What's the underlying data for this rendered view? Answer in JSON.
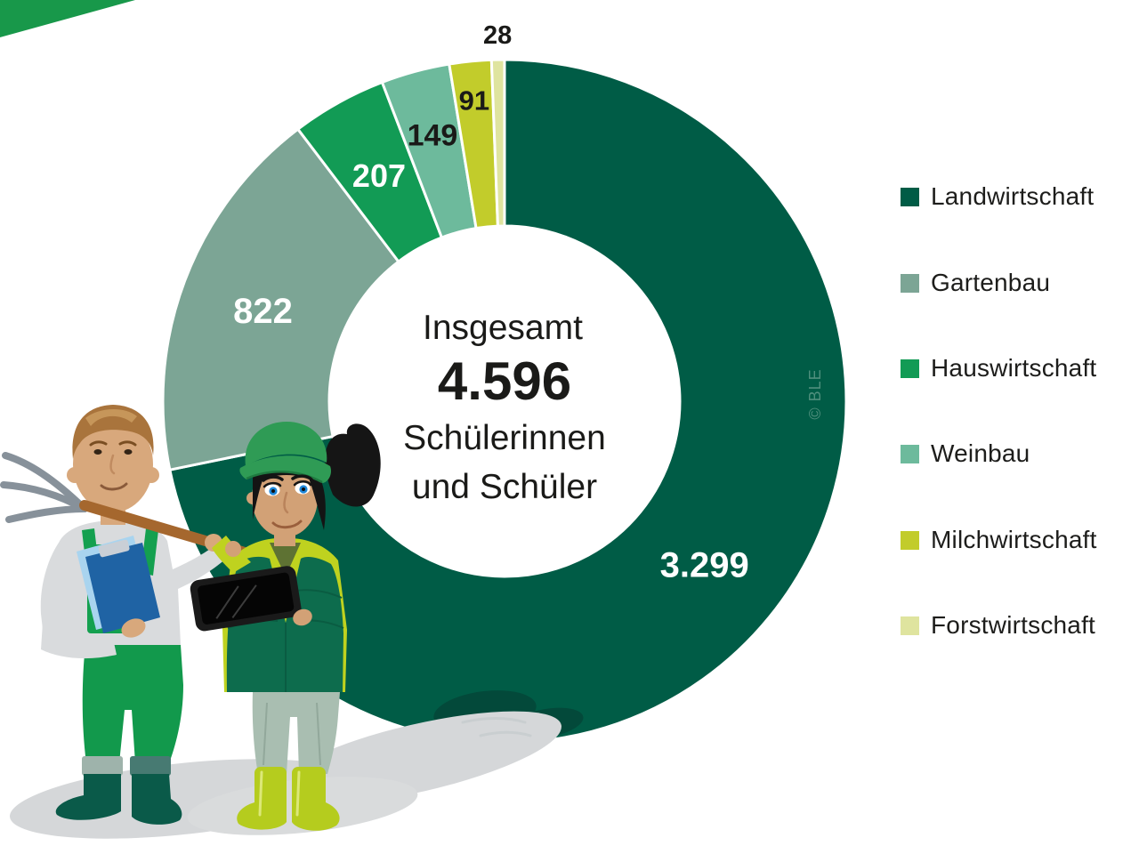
{
  "watermark": "© BLE",
  "chart_data": {
    "type": "pie",
    "variant": "donut",
    "title": "",
    "center": {
      "line1": "Insgesamt",
      "total": "4.596",
      "line3": "Schülerinnen",
      "line4": "und Schüler"
    },
    "total_value": 4596,
    "start_angle_deg": 0,
    "direction": "clockwise",
    "legend_position": "right",
    "segments": [
      {
        "label": "Landwirtschaft",
        "value": 3299,
        "display": "3.299",
        "color": "#005C46",
        "label_color": "#FFFFFF"
      },
      {
        "label": "Gartenbau",
        "value": 822,
        "display": "822",
        "color": "#7CA595",
        "label_color": "#FFFFFF"
      },
      {
        "label": "Hauswirtschaft",
        "value": 207,
        "display": "207",
        "color": "#129B55",
        "label_color": "#FFFFFF"
      },
      {
        "label": "Weinbau",
        "value": 149,
        "display": "149",
        "color": "#6DBA9C",
        "label_color": "#1A1A18"
      },
      {
        "label": "Milchwirtschaft",
        "value": 91,
        "display": "91",
        "color": "#C2CC2B",
        "label_color": "#1A1A18"
      },
      {
        "label": "Forstwirtschaft",
        "value": 28,
        "display": "28",
        "color": "#DFE49F",
        "label_color": "#1A1A18"
      }
    ],
    "accent_colors": {
      "corner_ribbon": "#18984A",
      "text": "#1A1A18",
      "watermark_green": "#4F8F7D"
    }
  }
}
